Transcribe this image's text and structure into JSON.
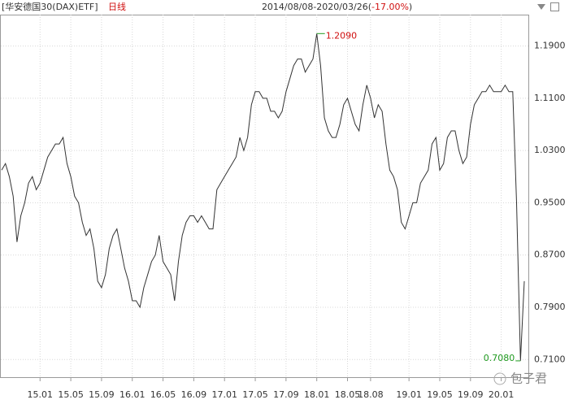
{
  "chart_data": {
    "type": "line",
    "title": "[华安德国30(DAX)ETF]",
    "period": "日线",
    "range": "2014/08/08-2020/03/26(",
    "change": "-17.00%",
    "range_end": ")",
    "watermark": "包子君",
    "color": "#333333",
    "grid": true,
    "ylim": [
      0.683,
      1.238
    ],
    "yticks": [
      {
        "value": 0.71,
        "label": "0.7100"
      },
      {
        "value": 0.79,
        "label": "0.7900"
      },
      {
        "value": 0.87,
        "label": "0.8700"
      },
      {
        "value": 0.95,
        "label": "0.9500"
      },
      {
        "value": 1.03,
        "label": "1.0300"
      },
      {
        "value": 1.11,
        "label": "1.1100"
      },
      {
        "value": 1.19,
        "label": "1.1900"
      }
    ],
    "annotations": [
      {
        "text": "1.2090",
        "color": "#d01010"
      },
      {
        "text": "0.7080",
        "color": "#209a20"
      }
    ],
    "categories": [
      null,
      null,
      null,
      null,
      null,
      null,
      null,
      null,
      null,
      null,
      "15.01",
      null,
      null,
      null,
      null,
      null,
      null,
      null,
      "15.05",
      null,
      null,
      null,
      null,
      null,
      null,
      null,
      "15.09",
      null,
      null,
      null,
      null,
      null,
      null,
      null,
      "16.01",
      null,
      null,
      null,
      null,
      null,
      null,
      null,
      "16.05",
      null,
      null,
      null,
      null,
      null,
      null,
      null,
      "16.09",
      null,
      null,
      null,
      null,
      null,
      null,
      null,
      "17.01",
      null,
      null,
      null,
      null,
      null,
      null,
      null,
      "17.05",
      null,
      null,
      null,
      null,
      null,
      null,
      null,
      "17.09",
      null,
      null,
      null,
      null,
      null,
      null,
      null,
      "18.01",
      null,
      null,
      null,
      null,
      null,
      null,
      null,
      "18.05",
      null,
      null,
      null,
      null,
      null,
      "18.08",
      null,
      null,
      null,
      null,
      null,
      null,
      null,
      null,
      null,
      "19.01",
      null,
      null,
      null,
      null,
      null,
      null,
      null,
      "19.05",
      null,
      null,
      null,
      null,
      null,
      null,
      null,
      "19.09",
      null,
      null,
      null,
      null,
      null,
      null,
      null,
      "20.01",
      null,
      null,
      null,
      null,
      null,
      null
    ],
    "values": [
      1.0,
      1.01,
      0.99,
      0.96,
      0.89,
      0.93,
      0.95,
      0.98,
      0.99,
      0.97,
      0.98,
      1.0,
      1.02,
      1.03,
      1.04,
      1.04,
      1.05,
      1.01,
      0.99,
      0.96,
      0.95,
      0.92,
      0.9,
      0.91,
      0.88,
      0.83,
      0.82,
      0.84,
      0.88,
      0.9,
      0.91,
      0.88,
      0.85,
      0.83,
      0.8,
      0.8,
      0.79,
      0.82,
      0.84,
      0.86,
      0.87,
      0.9,
      0.86,
      0.85,
      0.84,
      0.8,
      0.86,
      0.9,
      0.92,
      0.93,
      0.93,
      0.92,
      0.93,
      0.92,
      0.91,
      0.91,
      0.97,
      0.98,
      0.99,
      1.0,
      1.01,
      1.02,
      1.05,
      1.03,
      1.05,
      1.1,
      1.12,
      1.12,
      1.11,
      1.11,
      1.09,
      1.09,
      1.08,
      1.09,
      1.12,
      1.14,
      1.16,
      1.17,
      1.17,
      1.15,
      1.16,
      1.17,
      1.209,
      1.16,
      1.08,
      1.06,
      1.05,
      1.05,
      1.07,
      1.1,
      1.11,
      1.09,
      1.07,
      1.06,
      1.1,
      1.13,
      1.11,
      1.08,
      1.1,
      1.09,
      1.04,
      1.0,
      0.99,
      0.97,
      0.92,
      0.91,
      0.93,
      0.95,
      0.95,
      0.98,
      0.99,
      1.0,
      1.04,
      1.05,
      1.0,
      1.01,
      1.05,
      1.06,
      1.06,
      1.03,
      1.01,
      1.02,
      1.07,
      1.1,
      1.11,
      1.12,
      1.12,
      1.13,
      1.12,
      1.12,
      1.12,
      1.13,
      1.12,
      1.12,
      0.95,
      0.708,
      0.83
    ]
  }
}
